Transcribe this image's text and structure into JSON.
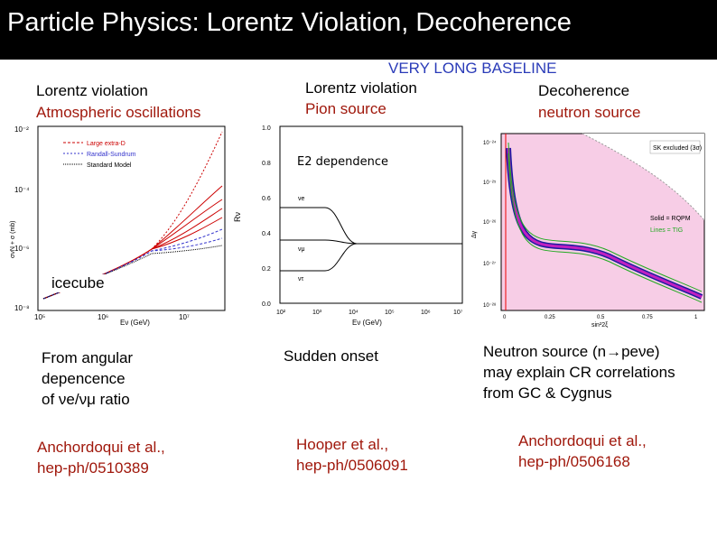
{
  "title": "Particle Physics: Lorentz Violation, Decoherence",
  "baseline_label": "VERY LONG BASELINE",
  "left": {
    "heading": "Lorentz violation",
    "subheading": "Atmospheric oscillations",
    "overlay": "icecube",
    "note_lines": [
      "From angular",
      "depencence",
      "of νe/νμ ratio"
    ],
    "ref_lines": [
      "Anchordoqui et al.,",
      "hep-ph/0510389"
    ]
  },
  "middle": {
    "heading": "Lorentz violation",
    "subheading": "Pion source",
    "overlay": "E2 dependence",
    "note": "Sudden onset",
    "ref_lines": [
      "Hooper et al.,",
      "hep-ph/0506091"
    ]
  },
  "right": {
    "heading": "Decoherence",
    "subheading": "neutron source",
    "note_lines": [
      "Neutron source (n→peνe)",
      "may explain CR correlations",
      "from GC & Cygnus"
    ],
    "ref_lines": [
      "Anchordoqui et al.,",
      "hep-ph/0506168"
    ]
  },
  "colors": {
    "title_bg": "#000000",
    "accent_red": "#a0180c",
    "accent_blue": "#2a3bb8"
  },
  "figures": {
    "left_plot": {
      "ytick_labels": [
        "10⁻²",
        "10⁻⁴",
        "10⁻⁶",
        "10⁻⁸"
      ],
      "xtick_labels": [
        "10⁵",
        "10⁶",
        "10⁷"
      ],
      "xlabel": "Eν (GeV)",
      "ylabel": "σνN + σ (mb)",
      "legend": [
        "Large extra-D",
        "Randall-Sundrum",
        "Standard Model"
      ]
    },
    "middle_plot": {
      "ytick_labels": [
        "1.0",
        "0.8",
        "0.6",
        "0.4",
        "0.2",
        "0.0"
      ],
      "xtick_labels": [
        "10²",
        "10³",
        "10⁴",
        "10⁵",
        "10⁶",
        "10⁷"
      ],
      "xlabel": "Eν (GeV)",
      "ylabel": "Rν",
      "curve_labels": [
        "νe",
        "νμ",
        "ντ"
      ]
    },
    "right_plot": {
      "ytick_labels": [
        "10⁻²⁴",
        "10⁻²⁵",
        "10⁻²⁶",
        "10⁻²⁷",
        "10⁻²⁸"
      ],
      "xtick_labels": [
        "0",
        "0.25",
        "0.5",
        "0.75",
        "1"
      ],
      "xlabel": "sin²2ξ",
      "ylabel": "Δγ",
      "excluded_label": "SK excluded (3σ)",
      "legend": [
        "Solid = RQPM",
        "Lines = TIG"
      ]
    }
  }
}
